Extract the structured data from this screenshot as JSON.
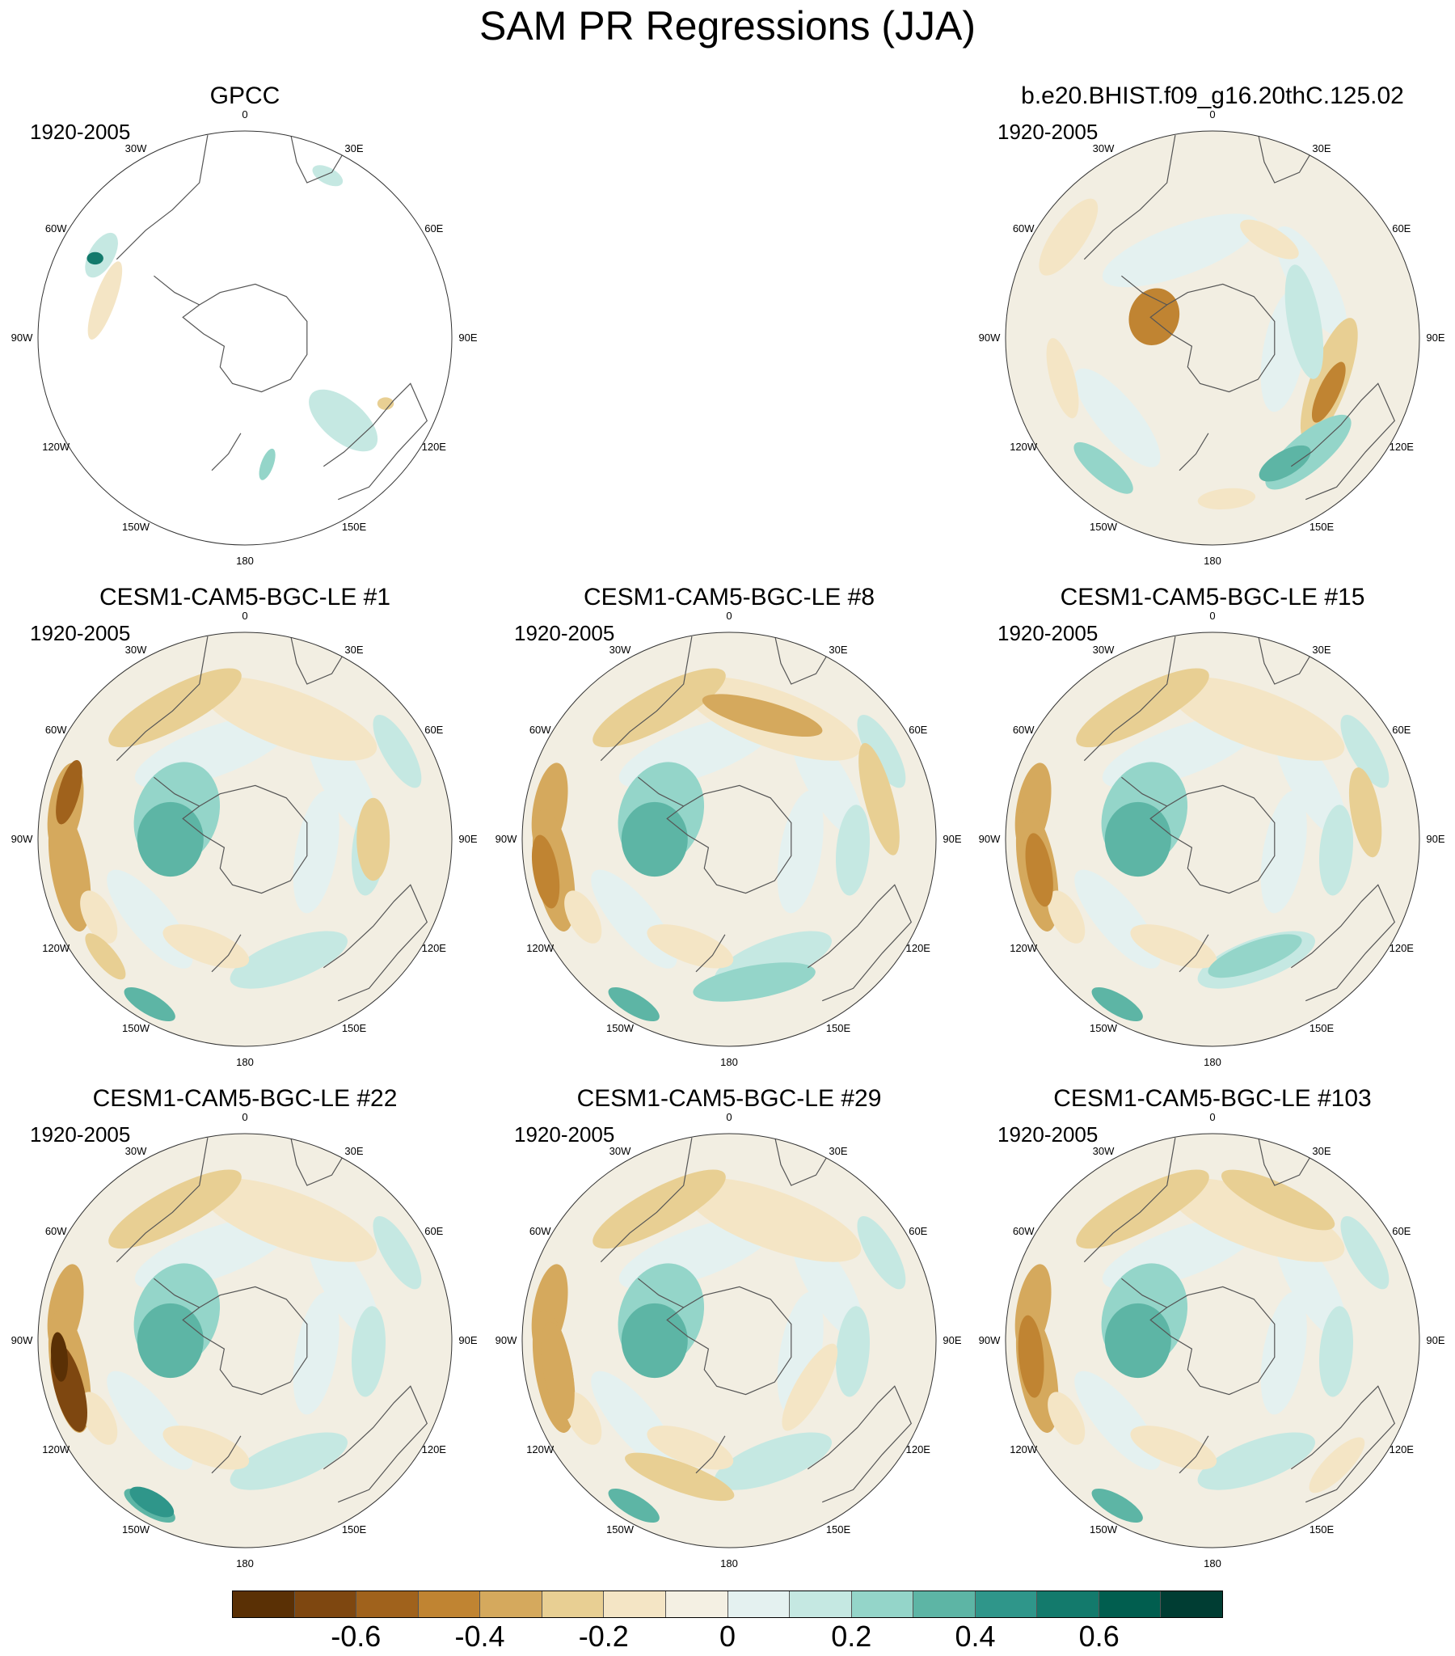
{
  "title": "SAM PR Regressions (JJA)",
  "longitude_labels": [
    "0",
    "30E",
    "60E",
    "90E",
    "120E",
    "150E",
    "180",
    "150W",
    "120W",
    "90W",
    "60W",
    "30W"
  ],
  "panels": [
    {
      "title": "GPCC",
      "period": "1920-2005",
      "coverage": "land-only",
      "pattern": "gpcc"
    },
    {
      "title": "b.e20.BHIST.f09_g16.20thC.125.02",
      "period": "1920-2005",
      "coverage": "global",
      "pattern": "hist"
    },
    {
      "title": "CESM1-CAM5-BGC-LE #1",
      "period": "1920-2005",
      "coverage": "global",
      "pattern": "le1"
    },
    {
      "title": "CESM1-CAM5-BGC-LE #8",
      "period": "1920-2005",
      "coverage": "global",
      "pattern": "le8"
    },
    {
      "title": "CESM1-CAM5-BGC-LE #15",
      "period": "1920-2005",
      "coverage": "global",
      "pattern": "le15"
    },
    {
      "title": "CESM1-CAM5-BGC-LE #22",
      "period": "1920-2005",
      "coverage": "global",
      "pattern": "le22"
    },
    {
      "title": "CESM1-CAM5-BGC-LE #29",
      "period": "1920-2005",
      "coverage": "global",
      "pattern": "le29"
    },
    {
      "title": "CESM1-CAM5-BGC-LE #103",
      "period": "1920-2005",
      "coverage": "global",
      "pattern": "le103"
    }
  ],
  "colorbar": {
    "colors": [
      "#5a3005",
      "#7e4710",
      "#a0621c",
      "#c08432",
      "#d5a95d",
      "#e8cf93",
      "#f4e5c5",
      "#f4f0e3",
      "#e4f1f0",
      "#c5e8e2",
      "#94d5c9",
      "#5db5a5",
      "#2f968a",
      "#137a6c",
      "#015e4f",
      "#003d33"
    ],
    "labels": [
      "-0.6",
      "-0.4",
      "-0.2",
      "0",
      "0.2",
      "0.4",
      "0.6"
    ],
    "label_values": [
      -0.6,
      -0.4,
      -0.2,
      0,
      0.2,
      0.4,
      0.6
    ],
    "min": -0.8,
    "max": 0.8
  }
}
